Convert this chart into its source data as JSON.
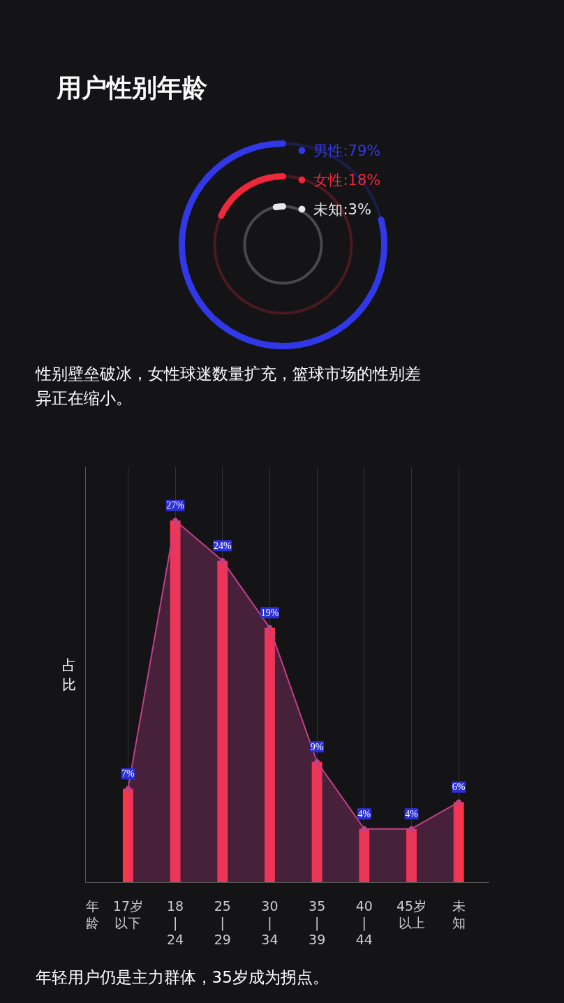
{
  "chart_data": [
    {
      "type": "other",
      "title": "用户性别年龄",
      "categories": [
        "男性",
        "女性",
        "未知"
      ],
      "values": [
        79,
        18,
        3
      ],
      "value_labels": [
        ":79%",
        ":18%",
        ":3%"
      ],
      "colors": [
        "#3038e8",
        "#f0283c",
        "#e8e8e8"
      ],
      "annotations": [
        "性别壁垒破冰，女性球迷数量扩充，篮球市场的性别差异正在缩小。"
      ]
    },
    {
      "type": "bar",
      "xlabel": "年龄",
      "ylabel": "占比",
      "categories": [
        "17岁以下",
        "18\n|\n24",
        "25\n|\n29",
        "30\n|\n34",
        "35\n|\n39",
        "40\n|\n44",
        "45岁以上",
        "未知"
      ],
      "series": [
        {
          "type": "bar",
          "color": "#ff3344",
          "values": [
            7,
            27,
            24,
            19,
            9,
            4,
            4,
            6
          ]
        },
        {
          "type": "area",
          "color": "#c0408a",
          "values": [
            7,
            27,
            24,
            19,
            9,
            4,
            4,
            6
          ],
          "value_labels": [
            "7%",
            "27%",
            "24%",
            "19%",
            "9%",
            "4%",
            "4%",
            "6%"
          ]
        }
      ],
      "ylim": [
        0,
        31
      ],
      "tick_labels": "x",
      "grid": "x",
      "marker": "circle",
      "annotations": [
        "年轻用户仍是主力群体，35岁成为拐点。"
      ]
    }
  ]
}
